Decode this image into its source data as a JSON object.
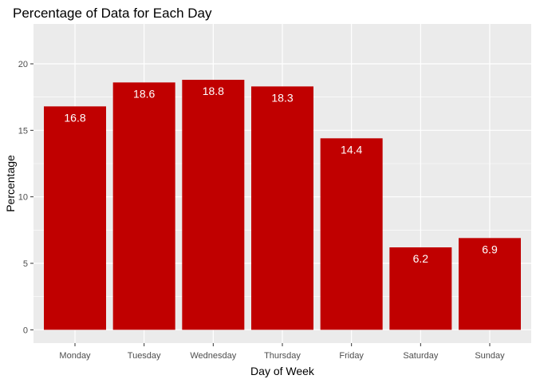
{
  "chart_data": {
    "type": "bar",
    "title": "Percentage of Data for Each Day",
    "xlabel": "Day of Week",
    "ylabel": "Percentage",
    "categories": [
      "Monday",
      "Tuesday",
      "Wednesday",
      "Thursday",
      "Friday",
      "Saturday",
      "Sunday"
    ],
    "values": [
      16.8,
      18.6,
      18.8,
      18.3,
      14.4,
      6.2,
      6.9
    ],
    "data_labels": [
      "16.8",
      "18.6",
      "18.8",
      "18.3",
      "14.4",
      "6.2",
      "6.9"
    ],
    "yticks": [
      0,
      5,
      10,
      15,
      20
    ],
    "ytick_labels": [
      "0",
      "5",
      "10",
      "15",
      "20"
    ],
    "ylim": [
      -1,
      23
    ],
    "grid": true,
    "legend": "none",
    "colors": {
      "bar": "#C00000",
      "panel": "#EBEBEB",
      "grid_major": "#FFFFFF",
      "tick_text": "#4D4D4D"
    }
  }
}
